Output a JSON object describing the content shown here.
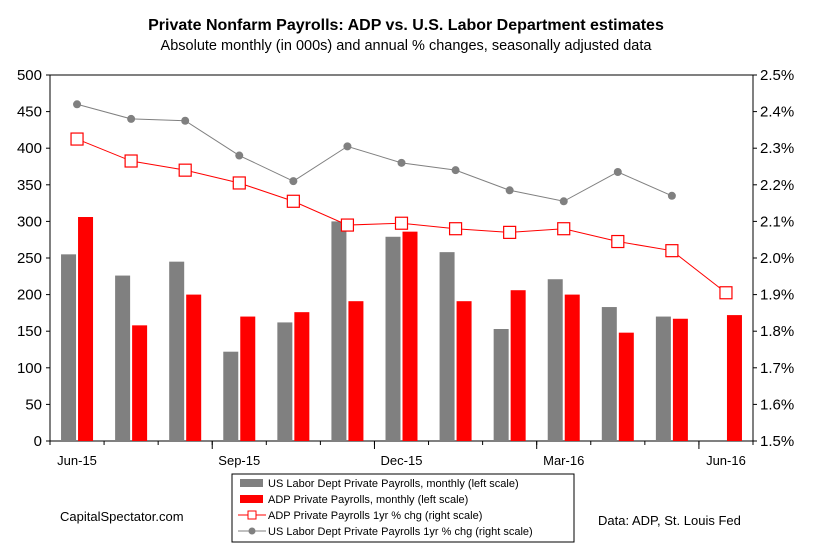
{
  "chart_data": {
    "type": "bar",
    "title": "Private Nonfarm Payrolls: ADP vs. U.S. Labor Department estimates",
    "subtitle": "Absolute monthly (in 000s) and annual % changes, seasonally adjusted data",
    "categories": [
      "Jun-15",
      "Jul-15",
      "Aug-15",
      "Sep-15",
      "Oct-15",
      "Nov-15",
      "Dec-15",
      "Jan-16",
      "Feb-16",
      "Mar-16",
      "Apr-16",
      "May-16",
      "Jun-16"
    ],
    "x_tick_labels": [
      "Jun-15",
      "Sep-15",
      "Dec-15",
      "Mar-16",
      "Jun-16"
    ],
    "left_axis": {
      "ylim": [
        0,
        500
      ],
      "ticks": [
        "0",
        "50",
        "100",
        "150",
        "200",
        "250",
        "300",
        "350",
        "400",
        "450",
        "500"
      ]
    },
    "right_axis": {
      "ylim": [
        1.5,
        2.5
      ],
      "ticks": [
        "1.5%",
        "1.6%",
        "1.7%",
        "1.8%",
        "1.9%",
        "2.0%",
        "2.1%",
        "2.2%",
        "2.3%",
        "2.4%",
        "2.5%"
      ]
    },
    "grid": false,
    "legend_position": "bottom-center",
    "series": [
      {
        "name": "US Labor Dept Private Payrolls, monthly (left scale)",
        "kind": "bar",
        "axis": "left",
        "color": "#808080",
        "values": [
          255,
          226,
          245,
          122,
          162,
          300,
          279,
          258,
          153,
          221,
          183,
          170,
          null
        ]
      },
      {
        "name": "ADP Private Payrolls, monthly (left scale)",
        "kind": "bar",
        "axis": "left",
        "color": "#ff0000",
        "values": [
          306,
          158,
          200,
          170,
          176,
          191,
          286,
          191,
          206,
          200,
          148,
          167,
          172
        ]
      },
      {
        "name": "ADP Private Payrolls 1yr % chg (right scale)",
        "kind": "line",
        "axis": "right",
        "color": "#ff0000",
        "marker": "square-open",
        "values": [
          2.325,
          2.265,
          2.24,
          2.205,
          2.155,
          2.09,
          2.095,
          2.08,
          2.07,
          2.08,
          2.045,
          2.02,
          1.905
        ]
      },
      {
        "name": "US Labor Dept Private Payrolls 1yr % chg (right scale)",
        "kind": "line",
        "axis": "right",
        "color": "#808080",
        "marker": "circle-filled",
        "values": [
          2.42,
          2.38,
          2.375,
          2.28,
          2.21,
          2.305,
          2.26,
          2.24,
          2.185,
          2.155,
          2.235,
          2.17,
          null
        ]
      }
    ]
  },
  "footer": {
    "source_left": "CapitalSpectator.com",
    "source_right": "Data: ADP, St. Louis Fed"
  },
  "colors": {
    "gray_bar": "#808080",
    "red": "#ff0000",
    "gray_line": "#808080"
  }
}
